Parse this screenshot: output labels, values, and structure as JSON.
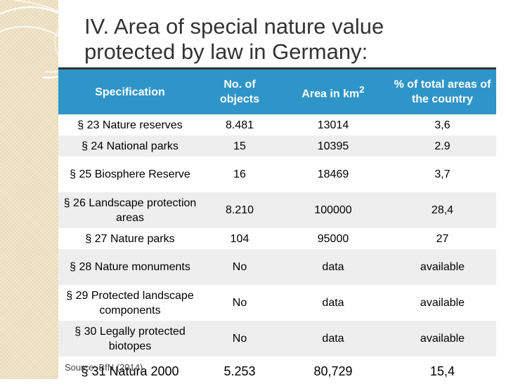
{
  "slide": {
    "title_line1": "IV.  Area of special nature value",
    "title_line2": "protected by law in Germany:",
    "source": "Source: BfN (2014)"
  },
  "table": {
    "headers": {
      "spec": "Specification",
      "objects": "No.  of objects",
      "area_prefix": "Area in km",
      "area_sup": "2",
      "pct": "% of total areas of the country"
    },
    "rows": [
      {
        "spec": "§ 23 Nature reserves",
        "objects": "8.481",
        "area": "13014",
        "pct": "3,6"
      },
      {
        "spec": "§ 24 National parks",
        "objects": "15",
        "area": "10395",
        "pct": "2.9"
      },
      {
        "spec": "§ 25 Biosphere Reserve",
        "objects": "16",
        "area": "18469",
        "pct": "3,7"
      },
      {
        "spec": "§ 26 Landscape protection areas",
        "objects": "8.210",
        "area": "100000",
        "pct": "28,4"
      },
      {
        "spec": "§ 27 Nature parks",
        "objects": "104",
        "area": "95000",
        "pct": "27"
      },
      {
        "spec": "§ 28 Nature monuments",
        "objects": "No",
        "area": "data",
        "pct": "available"
      },
      {
        "spec": "§ 29 Protected landscape components",
        "objects": "No",
        "area": "data",
        "pct": "available"
      },
      {
        "spec": "§ 30 Legally protected biotopes",
        "objects": "No",
        "area": "data",
        "pct": "available"
      },
      {
        "spec": "§ 31 Natura 2000",
        "objects": "5.253",
        "area": "80,729",
        "pct": "15,4"
      }
    ]
  },
  "colors": {
    "header_bg": "#2f95c8",
    "sidebar_bg": "#f1e6cc",
    "row_alt": "#eeeeee"
  }
}
